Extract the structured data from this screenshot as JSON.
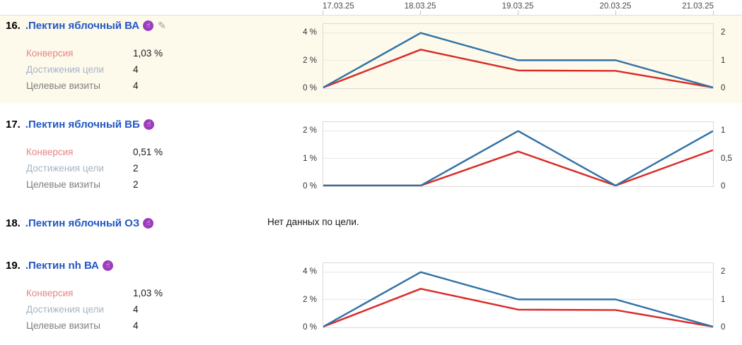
{
  "header": {
    "dates": [
      "17.03.25",
      "18.03.25",
      "19.03.25",
      "20.03.25",
      "21.03.25"
    ]
  },
  "colors": {
    "conversion_line": "#d92b27",
    "goal_reaches_line": "#3172a6",
    "highlight_row_bg": "#fdfaec",
    "title_link": "#2257c4",
    "goal_icon_purple": "#9d3bbd",
    "grid": "#e9e7df"
  },
  "metric_labels": {
    "conversion": "Конверсия",
    "goal_reaches": "Достижения цели",
    "goal_visits": "Целевые визиты"
  },
  "icons": {
    "goal_icon_glyph": "☝",
    "edit_icon_glyph": "✎"
  },
  "items": [
    {
      "number": "16.",
      "title": ".Пектин яблочный ВА",
      "metrics": {
        "conversion": "1,03 %",
        "goal_reaches": "4",
        "goal_visits": "4"
      }
    },
    {
      "number": "17.",
      "title": ".Пектин яблочный ВБ",
      "metrics": {
        "conversion": "0,51 %",
        "goal_reaches": "2",
        "goal_visits": "2"
      }
    },
    {
      "number": "18.",
      "title": ".Пектин яблочный ОЗ",
      "no_data_text": "Нет данных по цели."
    },
    {
      "number": "19.",
      "title": ".Пектин nh ВА",
      "metrics": {
        "conversion": "1,03 %",
        "goal_reaches": "4",
        "goal_visits": "4"
      }
    }
  ],
  "chart_data": [
    {
      "type": "line",
      "title": "Goal chart for .Пектин яблочный ВА",
      "x": [
        "17.03.25",
        "18.03.25",
        "19.03.25",
        "20.03.25",
        "21.03.25"
      ],
      "left_axis": {
        "ticks": [
          "4 %",
          "2 %",
          "0 %"
        ],
        "max": 4
      },
      "right_axis": {
        "ticks": [
          "2",
          "1",
          "0"
        ],
        "max": 2
      },
      "grid": true,
      "series": [
        {
          "name": "Конверсия",
          "axis": "left",
          "color": "#d92b27",
          "values": [
            0,
            2.78,
            1.25,
            1.22,
            0
          ]
        },
        {
          "name": "Достижения цели",
          "axis": "right",
          "color": "#3172a6",
          "values": [
            0,
            2,
            1,
            1,
            0
          ]
        }
      ]
    },
    {
      "type": "line",
      "title": "Goal chart for .Пектин яблочный ВБ",
      "x": [
        "17.03.25",
        "18.03.25",
        "19.03.25",
        "20.03.25",
        "21.03.25"
      ],
      "left_axis": {
        "ticks": [
          "2 %",
          "1 %",
          "0 %"
        ],
        "max": 2
      },
      "right_axis": {
        "ticks": [
          "1",
          "0,5",
          "0"
        ],
        "max": 1
      },
      "grid": true,
      "series": [
        {
          "name": "Конверсия",
          "axis": "left",
          "color": "#d92b27",
          "values": [
            0,
            0,
            1.25,
            0,
            1.3
          ]
        },
        {
          "name": "Достижения цели",
          "axis": "right",
          "color": "#3172a6",
          "values": [
            0,
            0,
            1,
            0,
            1
          ]
        }
      ]
    },
    {
      "type": "line",
      "title": "Goal chart for .Пектин nh ВА",
      "x": [
        "17.03.25",
        "18.03.25",
        "19.03.25",
        "20.03.25",
        "21.03.25"
      ],
      "left_axis": {
        "ticks": [
          "4 %",
          "2 %",
          "0 %"
        ],
        "max": 4
      },
      "right_axis": {
        "ticks": [
          "2",
          "1",
          "0"
        ],
        "max": 2
      },
      "grid": true,
      "series": [
        {
          "name": "Конверсия",
          "axis": "left",
          "color": "#d92b27",
          "values": [
            0,
            2.78,
            1.25,
            1.22,
            0
          ]
        },
        {
          "name": "Достижения цели",
          "axis": "right",
          "color": "#3172a6",
          "values": [
            0,
            2,
            1,
            1,
            0
          ]
        }
      ]
    }
  ]
}
